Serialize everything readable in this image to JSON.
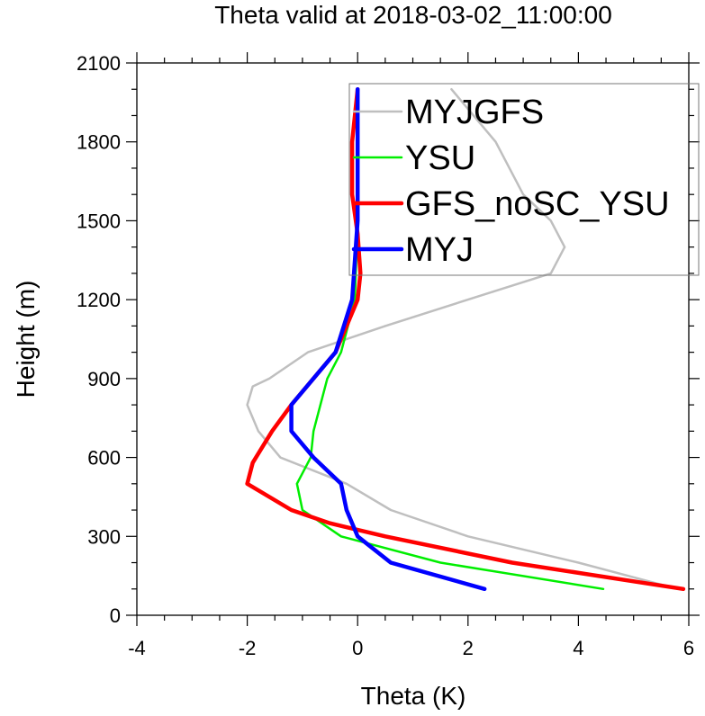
{
  "chart_data": {
    "type": "line",
    "title": "Theta valid at 2018-03-02_11:00:00",
    "xlabel": "Theta (K)",
    "ylabel": "Height (m)",
    "xlim": [
      -4,
      6
    ],
    "ylim": [
      0,
      2100
    ],
    "xticks": [
      -4,
      -2,
      0,
      2,
      4,
      6
    ],
    "yticks": [
      0,
      300,
      600,
      900,
      1200,
      1500,
      1800,
      2100
    ],
    "legend_position": "top-right",
    "series": [
      {
        "name": "MYJGFS",
        "color": "#bfbfbf",
        "x": [
          5.8,
          4.0,
          2.0,
          0.6,
          -0.2,
          -1.4,
          -1.8,
          -2.0,
          -1.9,
          -1.6,
          -0.9,
          0.5,
          2.0,
          3.5,
          3.75,
          3.5,
          3.0,
          2.5,
          1.7
        ],
        "y": [
          100,
          200,
          300,
          400,
          500,
          600,
          700,
          800,
          870,
          900,
          1000,
          1100,
          1200,
          1300,
          1400,
          1500,
          1600,
          1800,
          2000
        ]
      },
      {
        "name": "YSU",
        "color": "#00ee00",
        "x": [
          4.45,
          1.5,
          -0.3,
          -1.0,
          -1.1,
          -0.85,
          -0.8,
          -0.55,
          -0.3,
          -0.05,
          0.0,
          0.0
        ],
        "y": [
          100,
          200,
          300,
          400,
          500,
          600,
          700,
          900,
          1000,
          1200,
          1500,
          2000
        ]
      },
      {
        "name": "GFS_noSC_YSU",
        "color": "#ff0000",
        "x": [
          5.9,
          2.8,
          0.5,
          -0.5,
          -1.2,
          -2.0,
          -1.9,
          -1.55,
          -1.2,
          -0.4,
          0.0,
          0.05,
          0.0,
          -0.1,
          -0.1,
          0.0
        ],
        "y": [
          100,
          200,
          300,
          350,
          400,
          500,
          580,
          700,
          800,
          1000,
          1200,
          1300,
          1450,
          1600,
          1800,
          2000
        ]
      },
      {
        "name": "MYJ",
        "color": "#0000ff",
        "x": [
          2.3,
          0.6,
          0.0,
          -0.2,
          -0.3,
          -0.8,
          -1.2,
          -1.2,
          -0.4,
          -0.1,
          0.0,
          0.0
        ],
        "y": [
          100,
          200,
          300,
          400,
          500,
          600,
          700,
          800,
          1000,
          1200,
          1500,
          2000
        ]
      }
    ]
  }
}
